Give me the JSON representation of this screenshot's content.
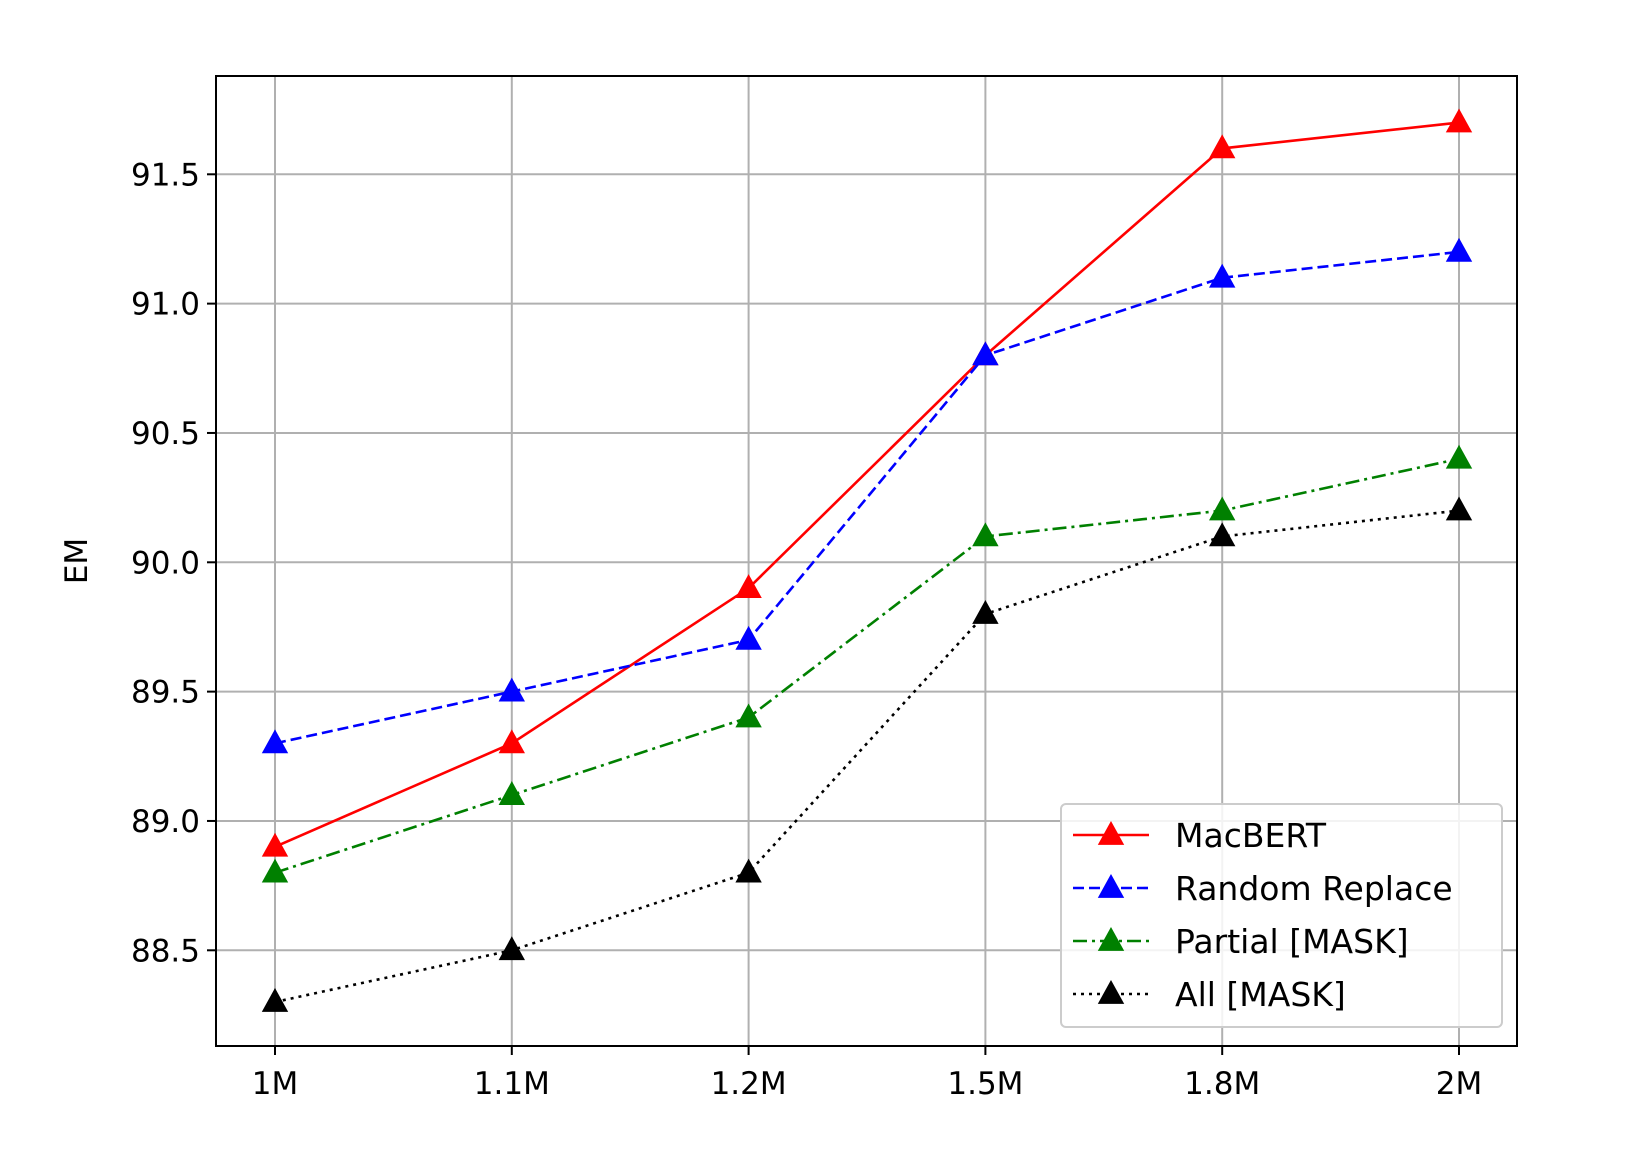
{
  "chart_data": {
    "type": "line",
    "title": "",
    "xlabel": "",
    "ylabel": "EM",
    "categories": [
      "1M",
      "1.1M",
      "1.2M",
      "1.5M",
      "1.8M",
      "2M"
    ],
    "ylim": [
      88.13,
      91.88
    ],
    "yticks": [
      88.5,
      89.0,
      89.5,
      90.0,
      90.5,
      91.0,
      91.5
    ],
    "ytick_labels": [
      "88.5",
      "89.0",
      "89.5",
      "90.0",
      "90.5",
      "91.0",
      "91.5"
    ],
    "grid": true,
    "legend_position": "lower-right",
    "series": [
      {
        "name": "MacBERT",
        "values": [
          88.9,
          89.3,
          89.9,
          90.8,
          91.6,
          91.7
        ],
        "color": "#ff0000",
        "dash": "solid"
      },
      {
        "name": "Random Replace",
        "values": [
          89.3,
          89.5,
          89.7,
          90.8,
          91.1,
          91.2
        ],
        "color": "#0000ff",
        "dash": "dashed"
      },
      {
        "name": "Partial [MASK]",
        "values": [
          88.8,
          89.1,
          89.4,
          90.1,
          90.2,
          90.4
        ],
        "color": "#008000",
        "dash": "dashdot"
      },
      {
        "name": "All [MASK]",
        "values": [
          88.3,
          88.5,
          88.8,
          89.8,
          90.1,
          90.2
        ],
        "color": "#000000",
        "dash": "dotted"
      }
    ]
  }
}
